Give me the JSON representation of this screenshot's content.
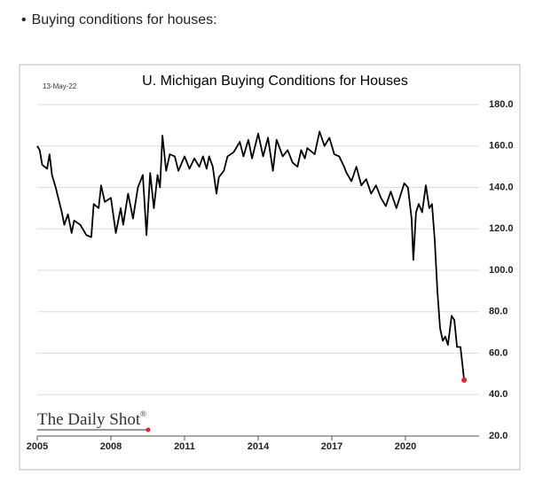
{
  "header": {
    "bullet": "Buying conditions for houses:"
  },
  "chart_data": {
    "type": "line",
    "title": "U. Michigan Buying Conditions for Houses",
    "date_note": "13-May-22",
    "source": "The Daily Shot",
    "source_mark": "®",
    "xlim": [
      2005,
      2023
    ],
    "xticks": [
      2005,
      2008,
      2011,
      2014,
      2017,
      2020
    ],
    "ylim": [
      20,
      180
    ],
    "yticks": [
      {
        "value": 20,
        "label": "20.0"
      },
      {
        "value": 40,
        "label": "40.0"
      },
      {
        "value": 60,
        "label": "60.0"
      },
      {
        "value": 80,
        "label": "80.0"
      },
      {
        "value": 100,
        "label": "100.0"
      },
      {
        "value": 120,
        "label": "120.0"
      },
      {
        "value": 140,
        "label": "140.0"
      },
      {
        "value": 160,
        "label": "160.0"
      },
      {
        "value": 180,
        "label": "180.0"
      }
    ],
    "grid": true,
    "last_point_color": "#e8202a",
    "series": [
      {
        "name": "Buying Conditions for Houses",
        "color": "#000000",
        "x": [
          2005.0,
          2005.1,
          2005.2,
          2005.4,
          2005.5,
          2005.6,
          2005.75,
          2006.0,
          2006.1,
          2006.25,
          2006.4,
          2006.5,
          2006.75,
          2007.0,
          2007.2,
          2007.3,
          2007.5,
          2007.6,
          2007.75,
          2008.0,
          2008.2,
          2008.4,
          2008.5,
          2008.7,
          2008.9,
          2009.1,
          2009.3,
          2009.45,
          2009.6,
          2009.75,
          2009.9,
          2010.0,
          2010.1,
          2010.25,
          2010.4,
          2010.6,
          2010.75,
          2011.0,
          2011.2,
          2011.4,
          2011.6,
          2011.75,
          2011.9,
          2012.0,
          2012.15,
          2012.3,
          2012.4,
          2012.6,
          2012.75,
          2013.0,
          2013.25,
          2013.4,
          2013.6,
          2013.75,
          2014.0,
          2014.2,
          2014.4,
          2014.6,
          2014.75,
          2015.0,
          2015.2,
          2015.4,
          2015.6,
          2015.75,
          2015.9,
          2016.0,
          2016.3,
          2016.5,
          2016.7,
          2016.9,
          2017.1,
          2017.3,
          2017.5,
          2017.6,
          2017.8,
          2018.0,
          2018.2,
          2018.4,
          2018.6,
          2018.8,
          2019.0,
          2019.2,
          2019.4,
          2019.63,
          2019.95,
          2020.1,
          2020.25,
          2020.32,
          2020.43,
          2020.54,
          2020.68,
          2020.83,
          2020.97,
          2021.08,
          2021.19,
          2021.3,
          2021.41,
          2021.52,
          2021.62,
          2021.73,
          2021.88,
          2021.99,
          2022.1,
          2022.24,
          2022.39
        ],
        "values": [
          160,
          158,
          151,
          149,
          156,
          146,
          140,
          128,
          122,
          127,
          118,
          124,
          122,
          117,
          116,
          132,
          130,
          141,
          133,
          135,
          118,
          130,
          122,
          137,
          125,
          140,
          146,
          117,
          147,
          130,
          146,
          140,
          165,
          148,
          156,
          155,
          148,
          155,
          149,
          154,
          150,
          155,
          149,
          155,
          150,
          137,
          145,
          148,
          155,
          157,
          162,
          155,
          163,
          154,
          166,
          155,
          164,
          148,
          163,
          155,
          158,
          152,
          150,
          158,
          154,
          159,
          156,
          167,
          160,
          164,
          156,
          155,
          150,
          147,
          143,
          150,
          141,
          144,
          137,
          141,
          135,
          131,
          138,
          130,
          142,
          140,
          125,
          105,
          128,
          132,
          128,
          141,
          130,
          132,
          115,
          90,
          72,
          66,
          68,
          64,
          78,
          76,
          63,
          63,
          47
        ]
      }
    ]
  }
}
